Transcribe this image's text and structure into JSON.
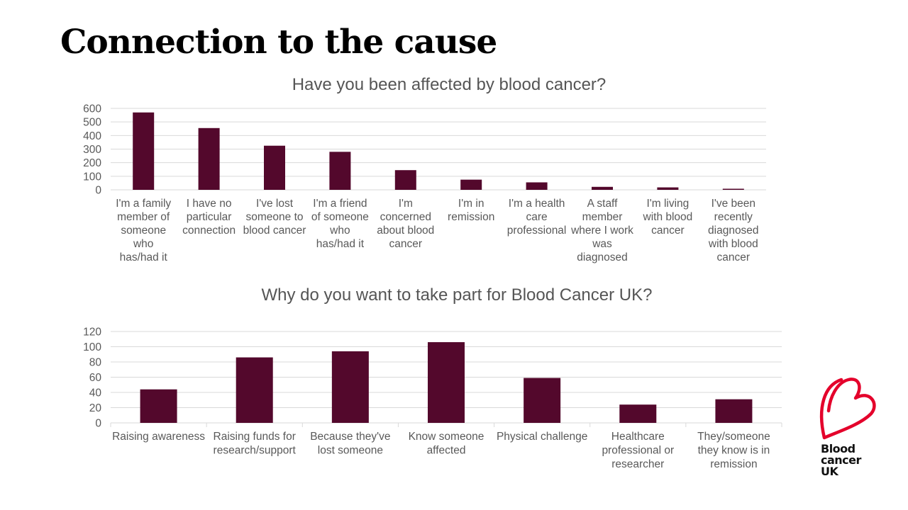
{
  "page": {
    "title": "Connection to the cause"
  },
  "colors": {
    "bar": "#53082c",
    "grid": "#d9d9d9",
    "axis_text": "#595959",
    "logo_heart": "#e4002b"
  },
  "logo": {
    "lines": [
      "Blood",
      "cancer",
      "UK"
    ],
    "icon": "heart-b-icon"
  },
  "chart_data": [
    {
      "type": "bar",
      "title": "Have you been affected by blood cancer?",
      "categories": [
        "I'm a family member of someone who has/had it",
        "I have no particular connection",
        "I've lost someone to blood cancer",
        "I'm a friend of someone who has/had it",
        "I'm concerned about blood cancer",
        "I'm in remission",
        "I'm a health care professional",
        "A staff member where I work was diagnosed",
        "I'm living with blood cancer",
        "I've been recently diagnosed with blood cancer"
      ],
      "category_lines": [
        [
          "I'm a family",
          "member of",
          "someone",
          "who",
          "has/had it"
        ],
        [
          "I have no",
          "particular",
          "connection"
        ],
        [
          "I've lost",
          "someone to",
          "blood cancer"
        ],
        [
          "I'm a friend",
          "of someone",
          "who",
          "has/had it"
        ],
        [
          "I'm",
          "concerned",
          "about blood",
          "cancer"
        ],
        [
          "I'm in",
          "remission"
        ],
        [
          "I'm a health",
          "care",
          "professional"
        ],
        [
          "A staff",
          "member",
          "where I work",
          "was",
          "diagnosed"
        ],
        [
          "I'm living",
          "with blood",
          "cancer"
        ],
        [
          "I've been",
          "recently",
          "diagnosed",
          "with blood",
          "cancer"
        ]
      ],
      "values": [
        570,
        455,
        325,
        280,
        145,
        75,
        55,
        22,
        18,
        8
      ],
      "ylim": [
        0,
        600
      ],
      "yticks": [
        0,
        100,
        200,
        300,
        400,
        500,
        600
      ],
      "grid": true,
      "xlabel": "",
      "ylabel": ""
    },
    {
      "type": "bar",
      "title": "Why do you want to take part for Blood Cancer UK?",
      "categories": [
        "Raising awareness",
        "Raising funds for research/support",
        "Because they've lost someone",
        "Know someone affected",
        "Physical challenge",
        "Healthcare professional or researcher",
        "They/someone they know is in remission"
      ],
      "category_lines": [
        [
          "Raising awareness"
        ],
        [
          "Raising funds for",
          "research/support"
        ],
        [
          "Because they've",
          "lost someone"
        ],
        [
          "Know someone",
          "affected"
        ],
        [
          "Physical challenge"
        ],
        [
          "Healthcare",
          "professional or",
          "researcher"
        ],
        [
          "They/someone",
          "they know is in",
          "remission"
        ]
      ],
      "values": [
        44,
        86,
        94,
        106,
        59,
        24,
        31
      ],
      "ylim": [
        0,
        120
      ],
      "yticks": [
        0,
        20,
        40,
        60,
        80,
        100,
        120
      ],
      "grid": true,
      "xlabel": "",
      "ylabel": ""
    }
  ]
}
